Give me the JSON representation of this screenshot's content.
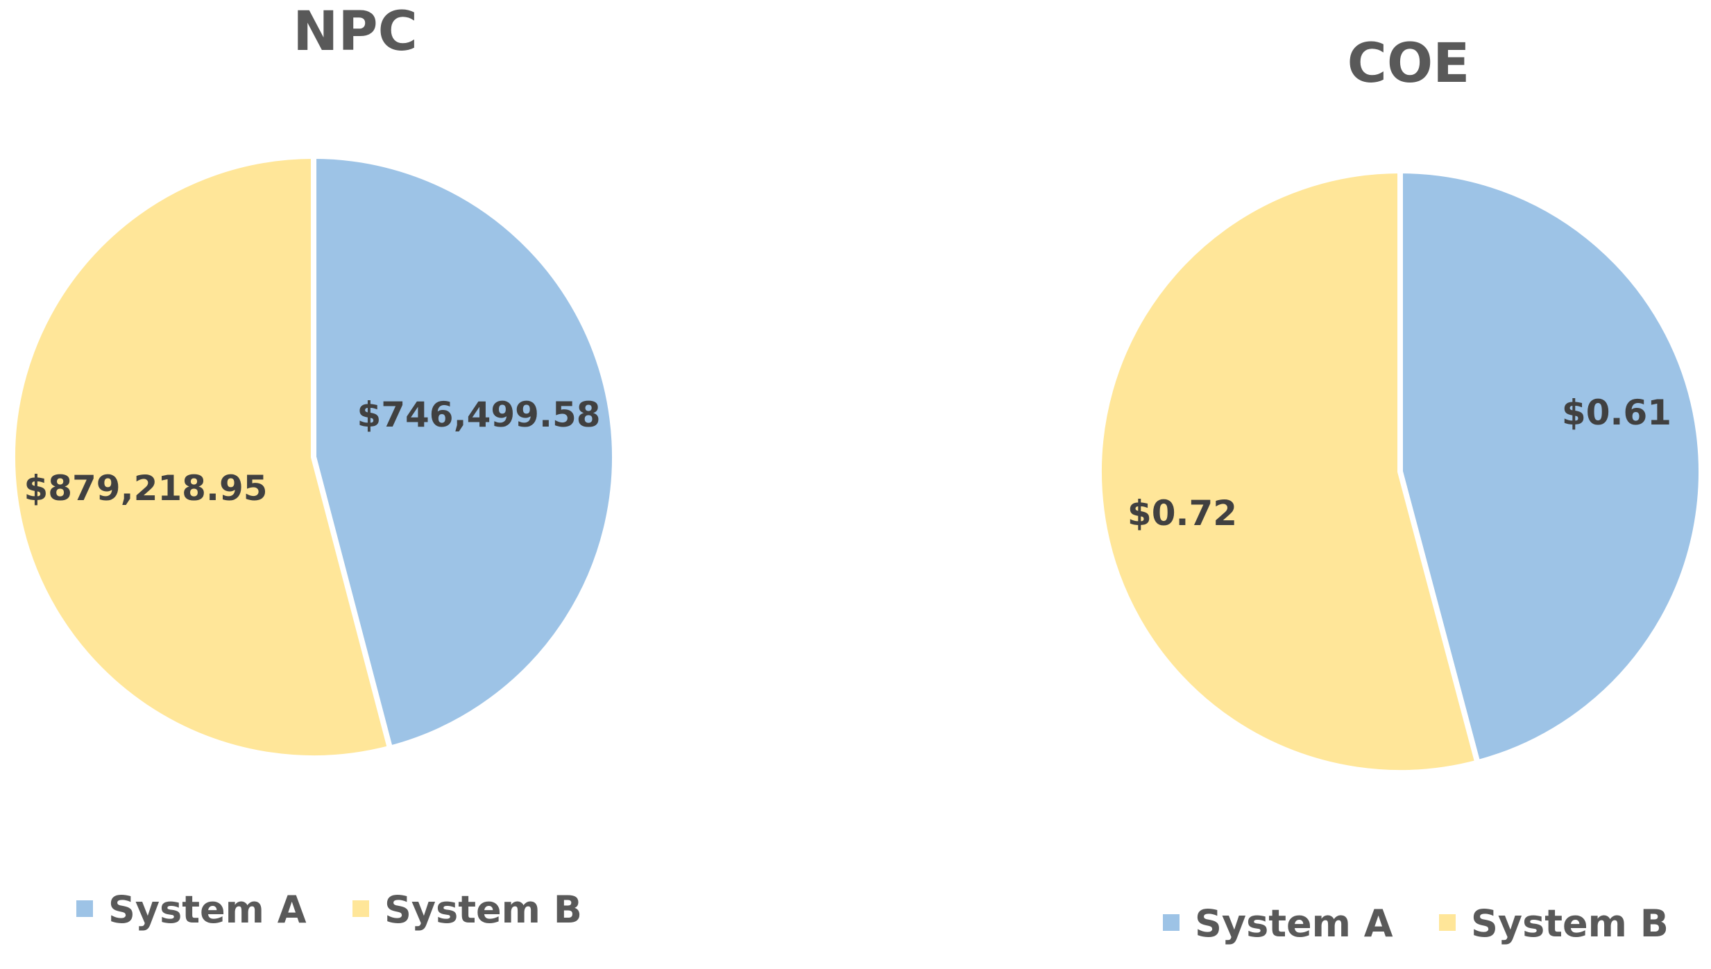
{
  "chart_data": [
    {
      "type": "pie",
      "title": "NPC",
      "categories": [
        "System A",
        "System B"
      ],
      "values": [
        746499.58,
        879218.95
      ],
      "data_labels": [
        "$746,499.58",
        "$879,218.95"
      ],
      "colors": [
        "#9DC3E6",
        "#FFE699"
      ],
      "start_angle_deg": 0,
      "direction": "clockwise",
      "legend": {
        "position": "bottom",
        "entries": [
          "System A",
          "System B"
        ]
      }
    },
    {
      "type": "pie",
      "title": "COE",
      "categories": [
        "System A",
        "System B"
      ],
      "values": [
        0.61,
        0.72
      ],
      "data_labels": [
        "$0.61",
        "$0.72"
      ],
      "colors": [
        "#9DC3E6",
        "#FFE699"
      ],
      "start_angle_deg": 0,
      "direction": "clockwise",
      "legend": {
        "position": "bottom",
        "entries": [
          "System A",
          "System B"
        ]
      }
    }
  ]
}
